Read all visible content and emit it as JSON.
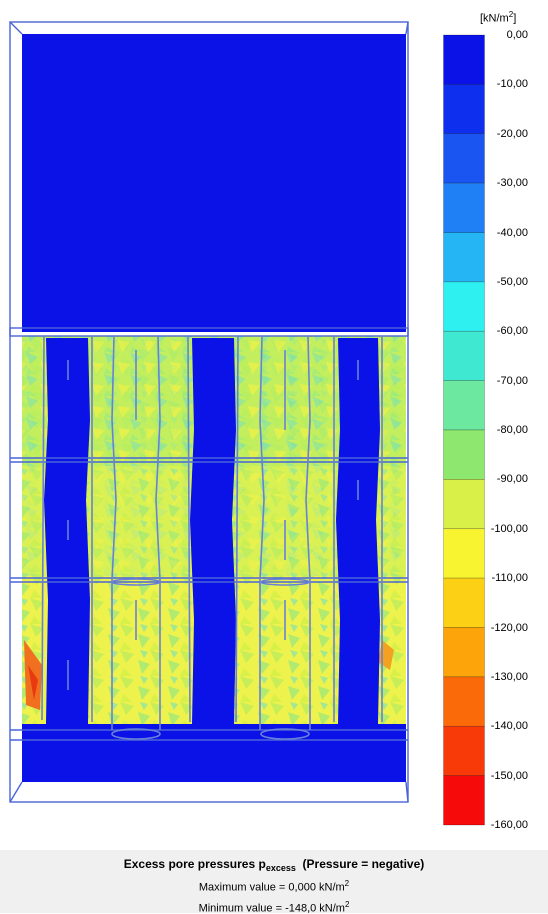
{
  "legend": {
    "unit_prefix": "[kN/m",
    "unit_power": "2",
    "unit_suffix": "]",
    "ticks": [
      "0,00",
      "-10,00",
      "-20,00",
      "-30,00",
      "-40,00",
      "-50,00",
      "-60,00",
      "-70,00",
      "-80,00",
      "-90,00",
      "-100,00",
      "-110,00",
      "-120,00",
      "-130,00",
      "-140,00",
      "-150,00",
      "-160,00"
    ],
    "colors": [
      "#0a12e8",
      "#0f2fee",
      "#1a55f2",
      "#1f7ff5",
      "#25b5f5",
      "#2ef0f0",
      "#3fe8d0",
      "#6de8a0",
      "#8ee870",
      "#d8f048",
      "#f8f430",
      "#fcd014",
      "#fca40a",
      "#fb6a08",
      "#f83a08",
      "#f60a0a"
    ]
  },
  "caption": {
    "title_main": "Excess pore pressures p",
    "title_sub": "excess",
    "title_tail": "(Pressure = negative)",
    "max_label": "Maximum value = 0,000 kN/m",
    "max_power": "2",
    "min_label": "Minimum value = -148,0 kN/m",
    "min_power": "2"
  },
  "palette": {
    "blue": "#0a12e8",
    "yellow": "#f2f24a",
    "green": "#a0e878",
    "cyan": "#64e0c8",
    "orange": "#f07020",
    "frame": "#4a64d8"
  }
}
